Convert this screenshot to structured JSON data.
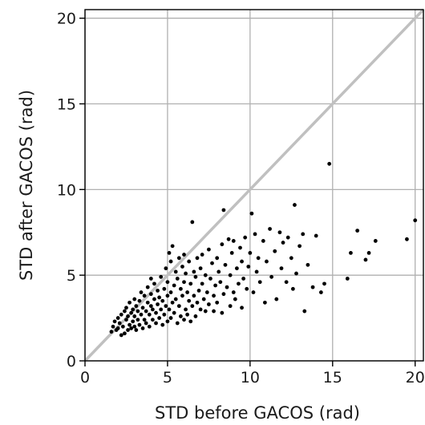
{
  "chart_data": {
    "type": "scatter",
    "xlabel": "STD before GACOS (rad)",
    "ylabel": "STD after GACOS (rad)",
    "xlim": [
      0,
      20.5
    ],
    "ylim": [
      0,
      20.5
    ],
    "xticks": [
      0,
      5,
      10,
      15,
      20
    ],
    "yticks": [
      0,
      5,
      10,
      15,
      20
    ],
    "xtick_labels": [
      "0",
      "5",
      "10",
      "15",
      "20"
    ],
    "ytick_labels": [
      "0",
      "5",
      "10",
      "15",
      "20"
    ],
    "grid": true,
    "reference_line": {
      "from": [
        0,
        0
      ],
      "to": [
        20.5,
        20.5
      ],
      "color": "#c0c0c0"
    },
    "marker_color": "#000000",
    "grid_color": "#b0b0b0",
    "points": [
      [
        1.6,
        1.7
      ],
      [
        1.7,
        2.0
      ],
      [
        1.8,
        2.3
      ],
      [
        1.9,
        1.8
      ],
      [
        2.0,
        2.5
      ],
      [
        2.0,
        1.9
      ],
      [
        2.1,
        2.2
      ],
      [
        2.2,
        2.7
      ],
      [
        2.2,
        1.5
      ],
      [
        2.3,
        2.0
      ],
      [
        2.4,
        2.9
      ],
      [
        2.4,
        1.6
      ],
      [
        2.5,
        2.4
      ],
      [
        2.5,
        3.1
      ],
      [
        2.6,
        1.8
      ],
      [
        2.6,
        2.6
      ],
      [
        2.7,
        2.1
      ],
      [
        2.7,
        3.4
      ],
      [
        2.8,
        1.9
      ],
      [
        2.8,
        2.8
      ],
      [
        2.9,
        2.3
      ],
      [
        2.9,
        3.0
      ],
      [
        3.0,
        2.0
      ],
      [
        3.0,
        2.6
      ],
      [
        3.0,
        3.6
      ],
      [
        3.1,
        1.8
      ],
      [
        3.1,
        3.2
      ],
      [
        3.2,
        2.4
      ],
      [
        3.2,
        2.9
      ],
      [
        3.3,
        2.1
      ],
      [
        3.3,
        3.5
      ],
      [
        3.4,
        2.7
      ],
      [
        3.4,
        4.0
      ],
      [
        3.5,
        1.9
      ],
      [
        3.5,
        3.1
      ],
      [
        3.6,
        2.4
      ],
      [
        3.6,
        3.8
      ],
      [
        3.7,
        2.2
      ],
      [
        3.7,
        2.9
      ],
      [
        3.8,
        3.4
      ],
      [
        3.8,
        4.3
      ],
      [
        3.9,
        2.0
      ],
      [
        3.9,
        2.7
      ],
      [
        4.0,
        3.2
      ],
      [
        4.0,
        3.9
      ],
      [
        4.0,
        4.8
      ],
      [
        4.1,
        2.4
      ],
      [
        4.1,
        3.0
      ],
      [
        4.2,
        3.6
      ],
      [
        4.2,
        4.5
      ],
      [
        4.3,
        2.2
      ],
      [
        4.3,
        2.8
      ],
      [
        4.4,
        3.3
      ],
      [
        4.4,
        4.1
      ],
      [
        4.5,
        2.5
      ],
      [
        4.5,
        3.7
      ],
      [
        4.6,
        3.0
      ],
      [
        4.6,
        4.9
      ],
      [
        4.7,
        2.1
      ],
      [
        4.7,
        3.5
      ],
      [
        4.8,
        4.2
      ],
      [
        4.8,
        2.7
      ],
      [
        4.9,
        3.2
      ],
      [
        4.9,
        5.4
      ],
      [
        5.0,
        2.3
      ],
      [
        5.0,
        3.8
      ],
      [
        5.0,
        4.6
      ],
      [
        5.1,
        3.0
      ],
      [
        5.1,
        6.3
      ],
      [
        5.2,
        2.5
      ],
      [
        5.2,
        4.0
      ],
      [
        5.2,
        5.8
      ],
      [
        5.3,
        3.4
      ],
      [
        5.3,
        6.7
      ],
      [
        5.4,
        2.8
      ],
      [
        5.4,
        4.4
      ],
      [
        5.5,
        3.6
      ],
      [
        5.5,
        5.2
      ],
      [
        5.6,
        2.2
      ],
      [
        5.6,
        4.8
      ],
      [
        5.7,
        3.2
      ],
      [
        5.7,
        6.0
      ],
      [
        5.8,
        2.6
      ],
      [
        5.8,
        4.2
      ],
      [
        5.9,
        5.5
      ],
      [
        5.9,
        3.8
      ],
      [
        6.0,
        2.4
      ],
      [
        6.0,
        4.6
      ],
      [
        6.0,
        6.2
      ],
      [
        6.1,
        3.0
      ],
      [
        6.1,
        5.1
      ],
      [
        6.2,
        2.7
      ],
      [
        6.2,
        4.0
      ],
      [
        6.3,
        3.5
      ],
      [
        6.3,
        5.8
      ],
      [
        6.4,
        2.3
      ],
      [
        6.4,
        4.5
      ],
      [
        6.5,
        3.2
      ],
      [
        6.5,
        8.1
      ],
      [
        6.6,
        5.2
      ],
      [
        6.6,
        3.8
      ],
      [
        6.7,
        2.6
      ],
      [
        6.7,
        4.9
      ],
      [
        6.8,
        3.4
      ],
      [
        6.8,
        6.0
      ],
      [
        6.9,
        4.1
      ],
      [
        7.0,
        3.0
      ],
      [
        7.0,
        5.4
      ],
      [
        7.1,
        4.5
      ],
      [
        7.1,
        6.2
      ],
      [
        7.2,
        3.6
      ],
      [
        7.3,
        2.9
      ],
      [
        7.3,
        5.0
      ],
      [
        7.4,
        4.0
      ],
      [
        7.5,
        6.5
      ],
      [
        7.5,
        3.3
      ],
      [
        7.6,
        4.8
      ],
      [
        7.7,
        5.7
      ],
      [
        7.8,
        3.8
      ],
      [
        7.8,
        2.9
      ],
      [
        7.9,
        4.4
      ],
      [
        8.0,
        6.0
      ],
      [
        8.0,
        3.4
      ],
      [
        8.1,
        5.2
      ],
      [
        8.2,
        4.6
      ],
      [
        8.3,
        2.8
      ],
      [
        8.3,
        6.8
      ],
      [
        8.4,
        8.8
      ],
      [
        8.4,
        3.9
      ],
      [
        8.5,
        5.6
      ],
      [
        8.6,
        4.3
      ],
      [
        8.7,
        7.1
      ],
      [
        8.8,
        3.2
      ],
      [
        8.8,
        5.0
      ],
      [
        8.9,
        6.3
      ],
      [
        9.0,
        4.0
      ],
      [
        9.0,
        7.0
      ],
      [
        9.1,
        3.6
      ],
      [
        9.2,
        5.4
      ],
      [
        9.3,
        4.5
      ],
      [
        9.4,
        6.6
      ],
      [
        9.5,
        3.1
      ],
      [
        9.5,
        5.8
      ],
      [
        9.6,
        4.8
      ],
      [
        9.7,
        7.2
      ],
      [
        9.8,
        4.2
      ],
      [
        9.9,
        5.5
      ],
      [
        10.0,
        6.3
      ],
      [
        10.1,
        8.6
      ],
      [
        10.2,
        4.0
      ],
      [
        10.3,
        7.4
      ],
      [
        10.4,
        5.2
      ],
      [
        10.5,
        6.0
      ],
      [
        10.6,
        4.6
      ],
      [
        10.8,
        7.0
      ],
      [
        10.9,
        3.4
      ],
      [
        11.0,
        5.8
      ],
      [
        11.2,
        7.7
      ],
      [
        11.3,
        4.9
      ],
      [
        11.5,
        6.4
      ],
      [
        11.6,
        3.6
      ],
      [
        11.8,
        7.5
      ],
      [
        11.9,
        5.4
      ],
      [
        12.0,
        6.9
      ],
      [
        12.2,
        4.6
      ],
      [
        12.3,
        7.2
      ],
      [
        12.5,
        6.0
      ],
      [
        12.6,
        4.2
      ],
      [
        12.7,
        9.1
      ],
      [
        12.8,
        5.1
      ],
      [
        13.0,
        6.7
      ],
      [
        13.2,
        7.4
      ],
      [
        13.3,
        2.9
      ],
      [
        13.5,
        5.6
      ],
      [
        13.8,
        4.3
      ],
      [
        14.0,
        7.3
      ],
      [
        14.3,
        4.0
      ],
      [
        14.5,
        4.5
      ],
      [
        14.8,
        11.5
      ],
      [
        15.9,
        4.8
      ],
      [
        16.1,
        6.3
      ],
      [
        16.5,
        7.6
      ],
      [
        17.0,
        5.9
      ],
      [
        17.2,
        6.3
      ],
      [
        17.6,
        7.0
      ],
      [
        19.5,
        7.1
      ],
      [
        20.0,
        8.2
      ]
    ]
  }
}
